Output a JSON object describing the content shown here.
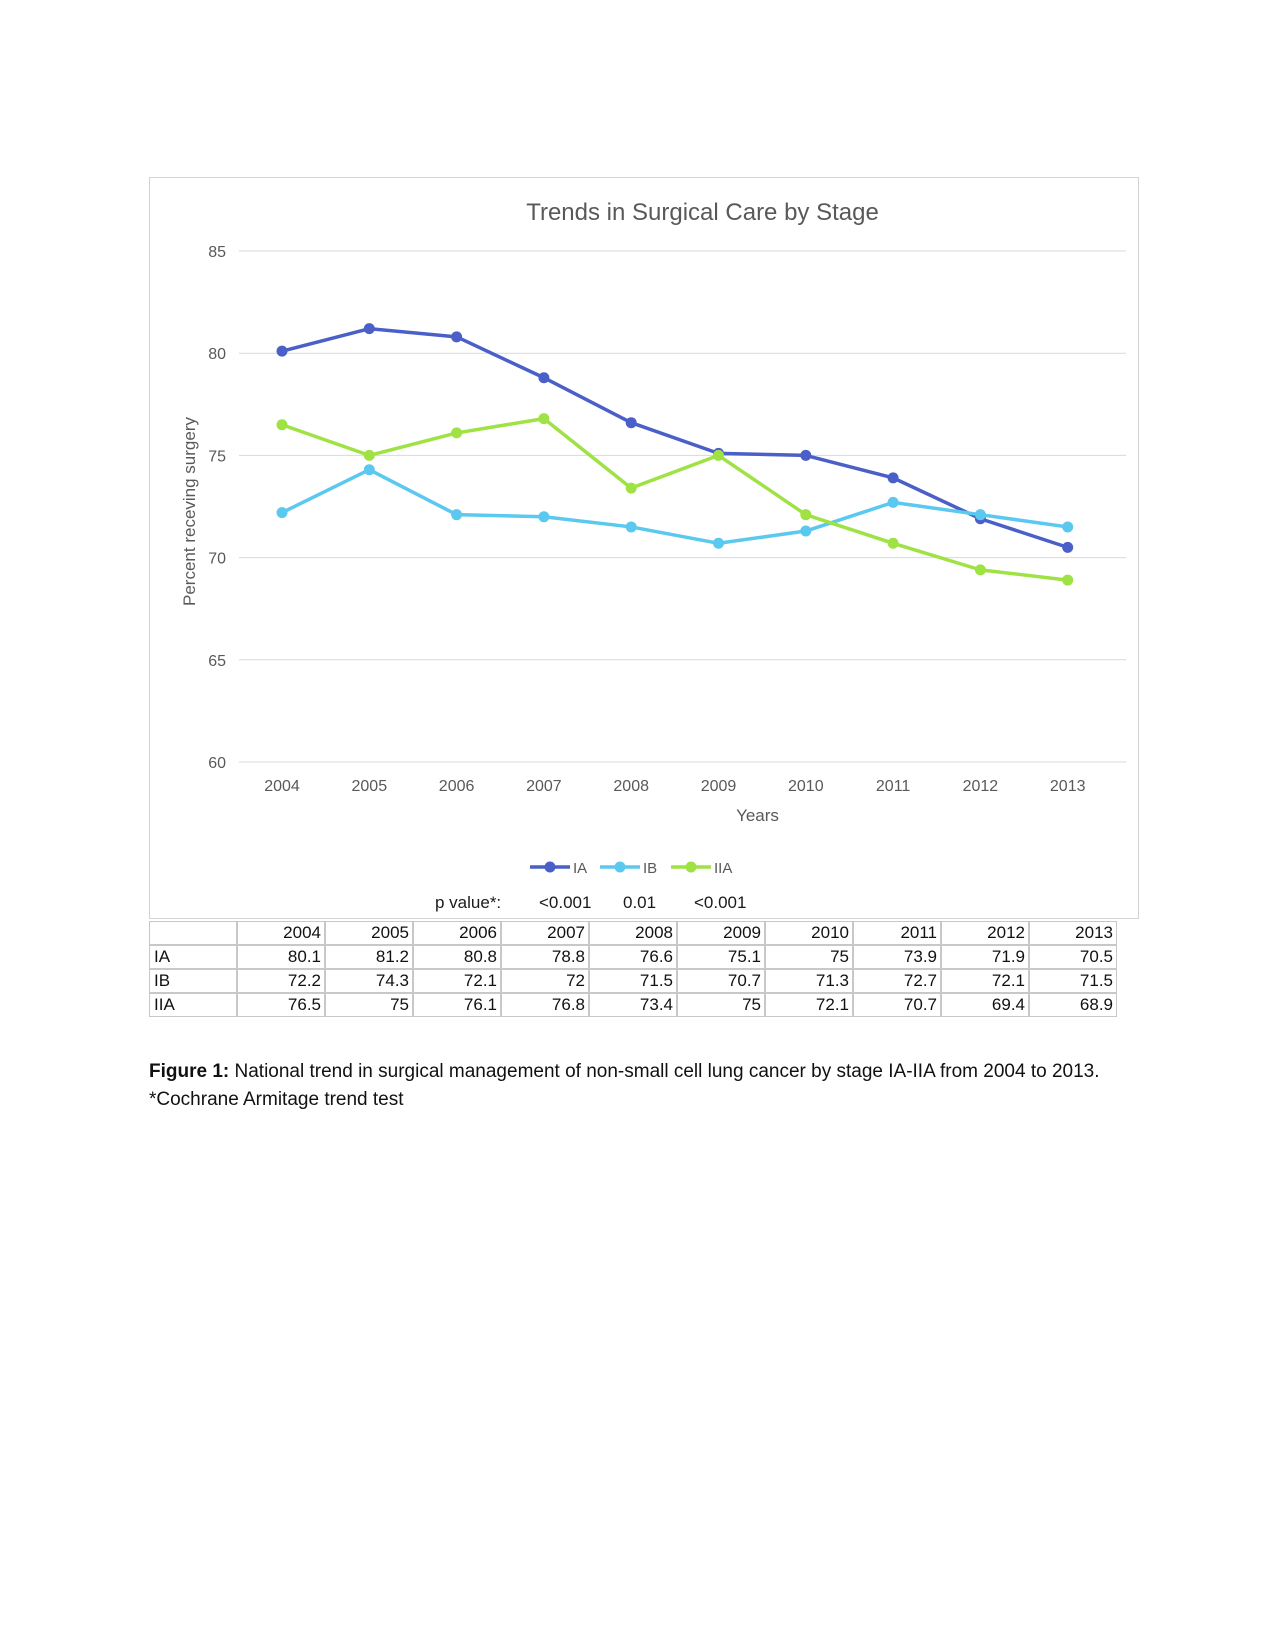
{
  "chart_data": {
    "type": "line",
    "title": "Trends in Surgical Care by Stage",
    "xlabel": "Years",
    "ylabel": "Percent receving surgery",
    "categories": [
      "2004",
      "2005",
      "2006",
      "2007",
      "2008",
      "2009",
      "2010",
      "2011",
      "2012",
      "2013"
    ],
    "ylim": [
      60,
      85
    ],
    "yticks": [
      60,
      65,
      70,
      75,
      80,
      85
    ],
    "grid": true,
    "legend_position": "bottom",
    "series": [
      {
        "name": "IA",
        "color": "#4a5fc8",
        "values": [
          80.1,
          81.2,
          80.8,
          78.8,
          76.6,
          75.1,
          75,
          73.9,
          71.9,
          70.5
        ]
      },
      {
        "name": "IB",
        "color": "#5bc8ef",
        "values": [
          72.2,
          74.3,
          72.1,
          72,
          71.5,
          70.7,
          71.3,
          72.7,
          72.1,
          71.5
        ]
      },
      {
        "name": "IIA",
        "color": "#9fe244",
        "values": [
          76.5,
          75,
          76.1,
          76.8,
          73.4,
          75,
          72.1,
          70.7,
          69.4,
          68.9
        ]
      }
    ]
  },
  "p_values": {
    "label": "p value*:",
    "values": [
      "<0.001",
      "0.01",
      "<0.001"
    ]
  },
  "table": {
    "header": [
      "",
      "2004",
      "2005",
      "2006",
      "2007",
      "2008",
      "2009",
      "2010",
      "2011",
      "2012",
      "2013"
    ],
    "rows": [
      [
        "IA",
        "80.1",
        "81.2",
        "80.8",
        "78.8",
        "76.6",
        "75.1",
        "75",
        "73.9",
        "71.9",
        "70.5"
      ],
      [
        "IB",
        "72.2",
        "74.3",
        "72.1",
        "72",
        "71.5",
        "70.7",
        "71.3",
        "72.7",
        "72.1",
        "71.5"
      ],
      [
        "IIA",
        "76.5",
        "75",
        "76.1",
        "76.8",
        "73.4",
        "75",
        "72.1",
        "70.7",
        "69.4",
        "68.9"
      ]
    ]
  },
  "caption": {
    "label": "Figure 1:",
    "text": " National trend in surgical management of non-small cell lung cancer by stage IA-IIA from 2004 to 2013.",
    "footnote": "*Cochrane Armitage trend test"
  }
}
